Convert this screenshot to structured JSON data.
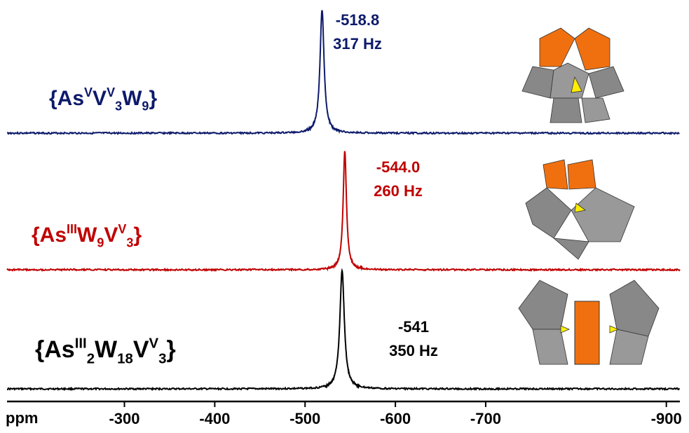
{
  "chart_data": {
    "type": "nmr-stack",
    "x_label": "ppm",
    "xlim": [
      -170,
      -915
    ],
    "xticks": [
      -300,
      -400,
      -500,
      -600,
      -700,
      -900
    ],
    "series": [
      {
        "name_parts": [
          {
            "text": "{As"
          },
          {
            "text": "V",
            "style": "sup"
          },
          {
            "text": "V"
          },
          {
            "text": "V",
            "style": "sup"
          },
          {
            "text": "3",
            "style": "sub"
          },
          {
            "text": "W"
          },
          {
            "text": "9",
            "style": "sub"
          },
          {
            "text": "}"
          }
        ],
        "color": "#0d1a6b",
        "values": [
          -518.8
        ],
        "value_labels": [
          "-518.8"
        ],
        "linewidth": 317,
        "linewidth_label": "317 Hz"
      },
      {
        "name_parts": [
          {
            "text": "{As"
          },
          {
            "text": "III",
            "style": "sup"
          },
          {
            "text": "W"
          },
          {
            "text": "9",
            "style": "sub"
          },
          {
            "text": "V"
          },
          {
            "text": "V",
            "style": "sup"
          },
          {
            "text": "3",
            "style": "sub"
          },
          {
            "text": "}"
          }
        ],
        "color": "#c00000",
        "values": [
          -544.0
        ],
        "value_labels": [
          "-544.0"
        ],
        "linewidth": 260,
        "linewidth_label": "260 Hz"
      },
      {
        "name_parts": [
          {
            "text": "{As"
          },
          {
            "text": "III",
            "style": "sup"
          },
          {
            "text": "2",
            "style": "sub"
          },
          {
            "text": "W"
          },
          {
            "text": "18",
            "style": "sub"
          },
          {
            "text": "V"
          },
          {
            "text": "V",
            "style": "sup"
          },
          {
            "text": "3",
            "style": "sub"
          },
          {
            "text": "}"
          }
        ],
        "color": "#000000",
        "values": [
          -541
        ],
        "value_labels": [
          "-541"
        ],
        "linewidth": 350,
        "linewidth_label": "350 Hz"
      }
    ]
  }
}
